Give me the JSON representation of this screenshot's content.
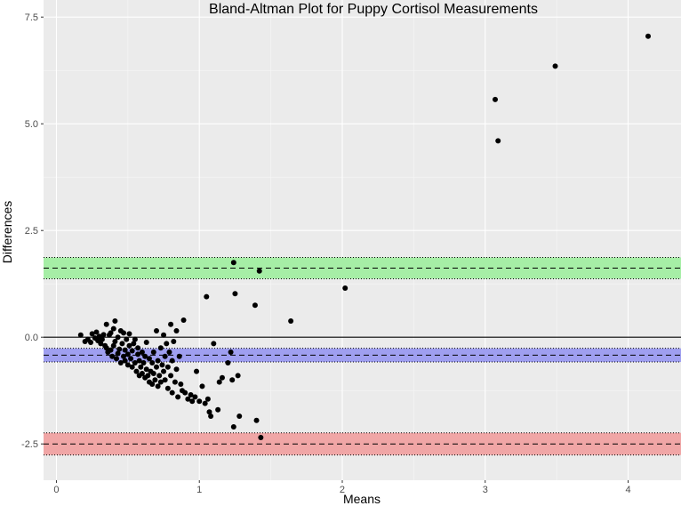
{
  "chart_data": {
    "type": "scatter",
    "title": "Bland-Altman Plot for Puppy Cortisol Measurements",
    "xlabel": "Means",
    "ylabel": "Differences",
    "xlim": [
      -0.09,
      4.37
    ],
    "ylim": [
      -3.35,
      7.9
    ],
    "x_ticks": [
      0,
      1,
      2,
      3,
      4
    ],
    "x_tick_labels": [
      "0",
      "1",
      "2",
      "3",
      "4"
    ],
    "y_ticks": [
      -2.5,
      0,
      2.5,
      5,
      7.5
    ],
    "y_tick_labels": [
      "-2.5",
      "0.0",
      "2.5",
      "5.0",
      "7.5"
    ],
    "grid": true,
    "background": "#ebebeb",
    "reference_line": {
      "y": 0,
      "color": "#000000"
    },
    "bands": [
      {
        "label": "upper limit of agreement",
        "center": 1.62,
        "lower": 1.37,
        "upper": 1.87,
        "fill": "#a6eea6"
      },
      {
        "label": "mean difference",
        "center": -0.42,
        "lower": -0.58,
        "upper": -0.26,
        "fill": "#9f9ff0"
      },
      {
        "label": "lower limit of agreement",
        "center": -2.5,
        "lower": -2.76,
        "upper": -2.24,
        "fill": "#f0a6a6"
      }
    ],
    "points": [
      [
        0.17,
        0.05
      ],
      [
        0.2,
        -0.1
      ],
      [
        0.22,
        -0.05
      ],
      [
        0.24,
        -0.12
      ],
      [
        0.25,
        0.08
      ],
      [
        0.27,
        -0.02
      ],
      [
        0.28,
        0.12
      ],
      [
        0.29,
        -0.08
      ],
      [
        0.3,
        0.02
      ],
      [
        0.31,
        -0.15
      ],
      [
        0.32,
        -0.05
      ],
      [
        0.33,
        0.06
      ],
      [
        0.34,
        -0.2
      ],
      [
        0.35,
        0.3
      ],
      [
        0.35,
        -0.25
      ],
      [
        0.36,
        -0.35
      ],
      [
        0.37,
        0.05
      ],
      [
        0.38,
        -0.3
      ],
      [
        0.38,
        0.1
      ],
      [
        0.39,
        -0.45
      ],
      [
        0.4,
        -0.2
      ],
      [
        0.4,
        0.2
      ],
      [
        0.41,
        0.38
      ],
      [
        0.41,
        -0.1
      ],
      [
        0.42,
        -0.5
      ],
      [
        0.43,
        0.0
      ],
      [
        0.43,
        -0.38
      ],
      [
        0.44,
        -0.28
      ],
      [
        0.45,
        -0.6
      ],
      [
        0.45,
        0.15
      ],
      [
        0.46,
        -0.15
      ],
      [
        0.47,
        -0.45
      ],
      [
        0.47,
        0.1
      ],
      [
        0.48,
        -0.55
      ],
      [
        0.48,
        -0.3
      ],
      [
        0.49,
        -0.05
      ],
      [
        0.5,
        -0.4
      ],
      [
        0.5,
        -0.65
      ],
      [
        0.51,
        0.08
      ],
      [
        0.51,
        -0.2
      ],
      [
        0.52,
        -0.5
      ],
      [
        0.53,
        -0.32
      ],
      [
        0.53,
        -0.7
      ],
      [
        0.54,
        -0.15
      ],
      [
        0.55,
        -0.6
      ],
      [
        0.55,
        -0.05
      ],
      [
        0.56,
        -0.8
      ],
      [
        0.57,
        -0.4
      ],
      [
        0.57,
        -0.25
      ],
      [
        0.58,
        -0.9
      ],
      [
        0.58,
        -0.55
      ],
      [
        0.59,
        -0.7
      ],
      [
        0.6,
        -0.35
      ],
      [
        0.6,
        -0.85
      ],
      [
        0.61,
        -0.6
      ],
      [
        0.62,
        -0.95
      ],
      [
        0.62,
        -0.45
      ],
      [
        0.63,
        -0.75
      ],
      [
        0.63,
        -0.12
      ],
      [
        0.64,
        -0.9
      ],
      [
        0.65,
        -0.5
      ],
      [
        0.65,
        -1.05
      ],
      [
        0.66,
        -0.8
      ],
      [
        0.67,
        -0.6
      ],
      [
        0.67,
        -1.1
      ],
      [
        0.68,
        -0.85
      ],
      [
        0.68,
        -0.35
      ],
      [
        0.69,
        -1.0
      ],
      [
        0.7,
        -0.7
      ],
      [
        0.7,
        0.15
      ],
      [
        0.71,
        -1.15
      ],
      [
        0.71,
        -0.55
      ],
      [
        0.72,
        -0.9
      ],
      [
        0.73,
        -0.25
      ],
      [
        0.73,
        -1.05
      ],
      [
        0.74,
        -0.65
      ],
      [
        0.75,
        -0.8
      ],
      [
        0.75,
        0.05
      ],
      [
        0.76,
        -1.0
      ],
      [
        0.76,
        -0.45
      ],
      [
        0.77,
        -0.15
      ],
      [
        0.78,
        -0.7
      ],
      [
        0.78,
        -1.2
      ],
      [
        0.79,
        -0.35
      ],
      [
        0.8,
        -0.9
      ],
      [
        0.8,
        0.3
      ],
      [
        0.81,
        -0.55
      ],
      [
        0.81,
        -1.3
      ],
      [
        0.82,
        -0.1
      ],
      [
        0.83,
        -1.05
      ],
      [
        0.84,
        -0.75
      ],
      [
        0.84,
        0.15
      ],
      [
        0.85,
        -1.4
      ],
      [
        0.86,
        -0.45
      ],
      [
        0.87,
        -1.1
      ],
      [
        0.88,
        -1.25
      ],
      [
        0.89,
        0.4
      ],
      [
        0.9,
        -1.3
      ],
      [
        0.92,
        -1.45
      ],
      [
        0.94,
        -1.35
      ],
      [
        0.95,
        -1.5
      ],
      [
        0.97,
        -1.4
      ],
      [
        0.98,
        -0.8
      ],
      [
        1.0,
        -1.5
      ],
      [
        1.02,
        -1.15
      ],
      [
        1.04,
        -1.55
      ],
      [
        1.05,
        0.95
      ],
      [
        1.06,
        -1.45
      ],
      [
        1.07,
        -1.75
      ],
      [
        1.08,
        -1.85
      ],
      [
        1.1,
        -0.15
      ],
      [
        1.13,
        -1.7
      ],
      [
        1.14,
        -1.05
      ],
      [
        1.16,
        -0.95
      ],
      [
        1.2,
        -0.6
      ],
      [
        1.22,
        -0.35
      ],
      [
        1.23,
        -1.0
      ],
      [
        1.24,
        -2.1
      ],
      [
        1.25,
        1.02
      ],
      [
        1.27,
        -0.9
      ],
      [
        1.28,
        -1.85
      ],
      [
        1.24,
        1.75
      ],
      [
        1.42,
        1.55
      ],
      [
        1.39,
        0.75
      ],
      [
        1.4,
        -1.95
      ],
      [
        1.43,
        -2.35
      ],
      [
        1.64,
        0.38
      ],
      [
        2.02,
        1.15
      ],
      [
        3.07,
        5.57
      ],
      [
        3.09,
        4.6
      ],
      [
        3.49,
        6.35
      ],
      [
        4.14,
        7.05
      ]
    ]
  }
}
